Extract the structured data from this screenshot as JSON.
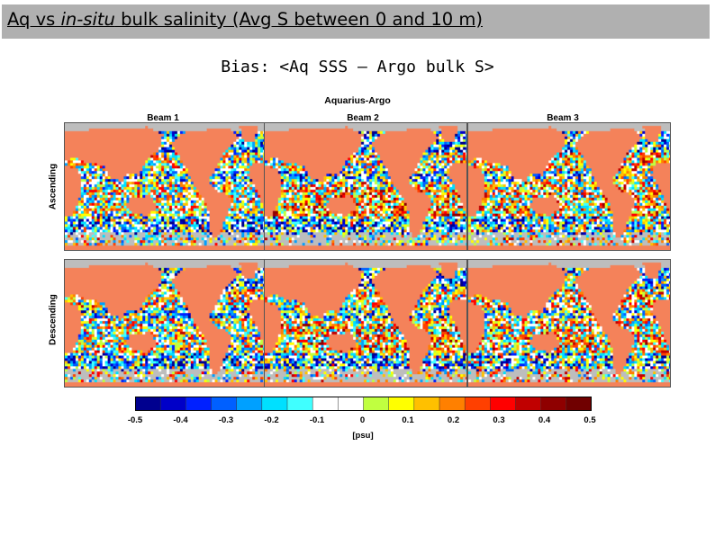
{
  "header": {
    "title_part1": "Aq vs ",
    "title_italic": "in-situ",
    "title_part2": " bulk salinity (Avg S between 0 and 10 m)",
    "subtitle": "Bias: <Aq SSS – Argo bulk S>",
    "background_color": "#b0b0b0"
  },
  "chart_data": {
    "type": "heatmap",
    "title": "Aquarius-Argo",
    "columns": [
      "Beam 1",
      "Beam 2",
      "Beam 3"
    ],
    "rows": [
      "Ascending",
      "Descending"
    ],
    "colorbar": {
      "ticks": [
        "-0.5",
        "-0.4",
        "-0.3",
        "-0.2",
        "-0.1",
        "0",
        "0.1",
        "0.2",
        "0.3",
        "0.4",
        "0.5"
      ],
      "range": [
        -0.5,
        0.5
      ],
      "unit": "[psu]",
      "colors": [
        "#00008f",
        "#0000c8",
        "#0020ff",
        "#0060ff",
        "#00a0ff",
        "#00e0ff",
        "#40ffff",
        "#ffffff",
        "#ffffff",
        "#c0ff40",
        "#ffff00",
        "#ffc000",
        "#ff8000",
        "#ff4000",
        "#ff0000",
        "#c00000",
        "#8f0000",
        "#700000"
      ]
    },
    "land_color": "#f4825a",
    "no_data_color": "#bdbdbd"
  }
}
